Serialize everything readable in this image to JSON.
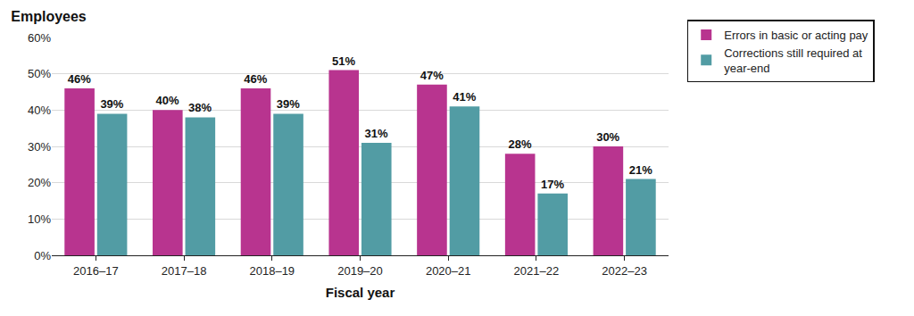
{
  "chart_data": {
    "type": "bar",
    "title": "Employees",
    "x_label": "Fiscal year",
    "categories": [
      "2016–17",
      "2017–18",
      "2018–19",
      "2019–20",
      "2020–21",
      "2021–22",
      "2022–23"
    ],
    "series": [
      {
        "name": "Errors in basic or acting pay",
        "color": "#b8348f",
        "values": [
          46,
          40,
          46,
          51,
          47,
          28,
          30
        ],
        "value_labels": [
          "46%",
          "40%",
          "46%",
          "51%",
          "47%",
          "28%",
          "30%"
        ]
      },
      {
        "name": "Corrections still required at year-end",
        "color": "#529ca4",
        "values": [
          39,
          38,
          39,
          31,
          41,
          17,
          21
        ],
        "value_labels": [
          "39%",
          "38%",
          "39%",
          "31%",
          "41%",
          "17%",
          "21%"
        ]
      }
    ],
    "ylim": [
      0,
      60
    ],
    "yticks": [
      {
        "value": 0,
        "label": "0%"
      },
      {
        "value": 10,
        "label": "10%"
      },
      {
        "value": 20,
        "label": "20%"
      },
      {
        "value": 30,
        "label": "30%"
      },
      {
        "value": 40,
        "label": "40%"
      },
      {
        "value": 50,
        "label": "50%"
      },
      {
        "value": 60,
        "label": "60%"
      }
    ],
    "grid": true,
    "legend": "top right",
    "data_labels": true
  }
}
